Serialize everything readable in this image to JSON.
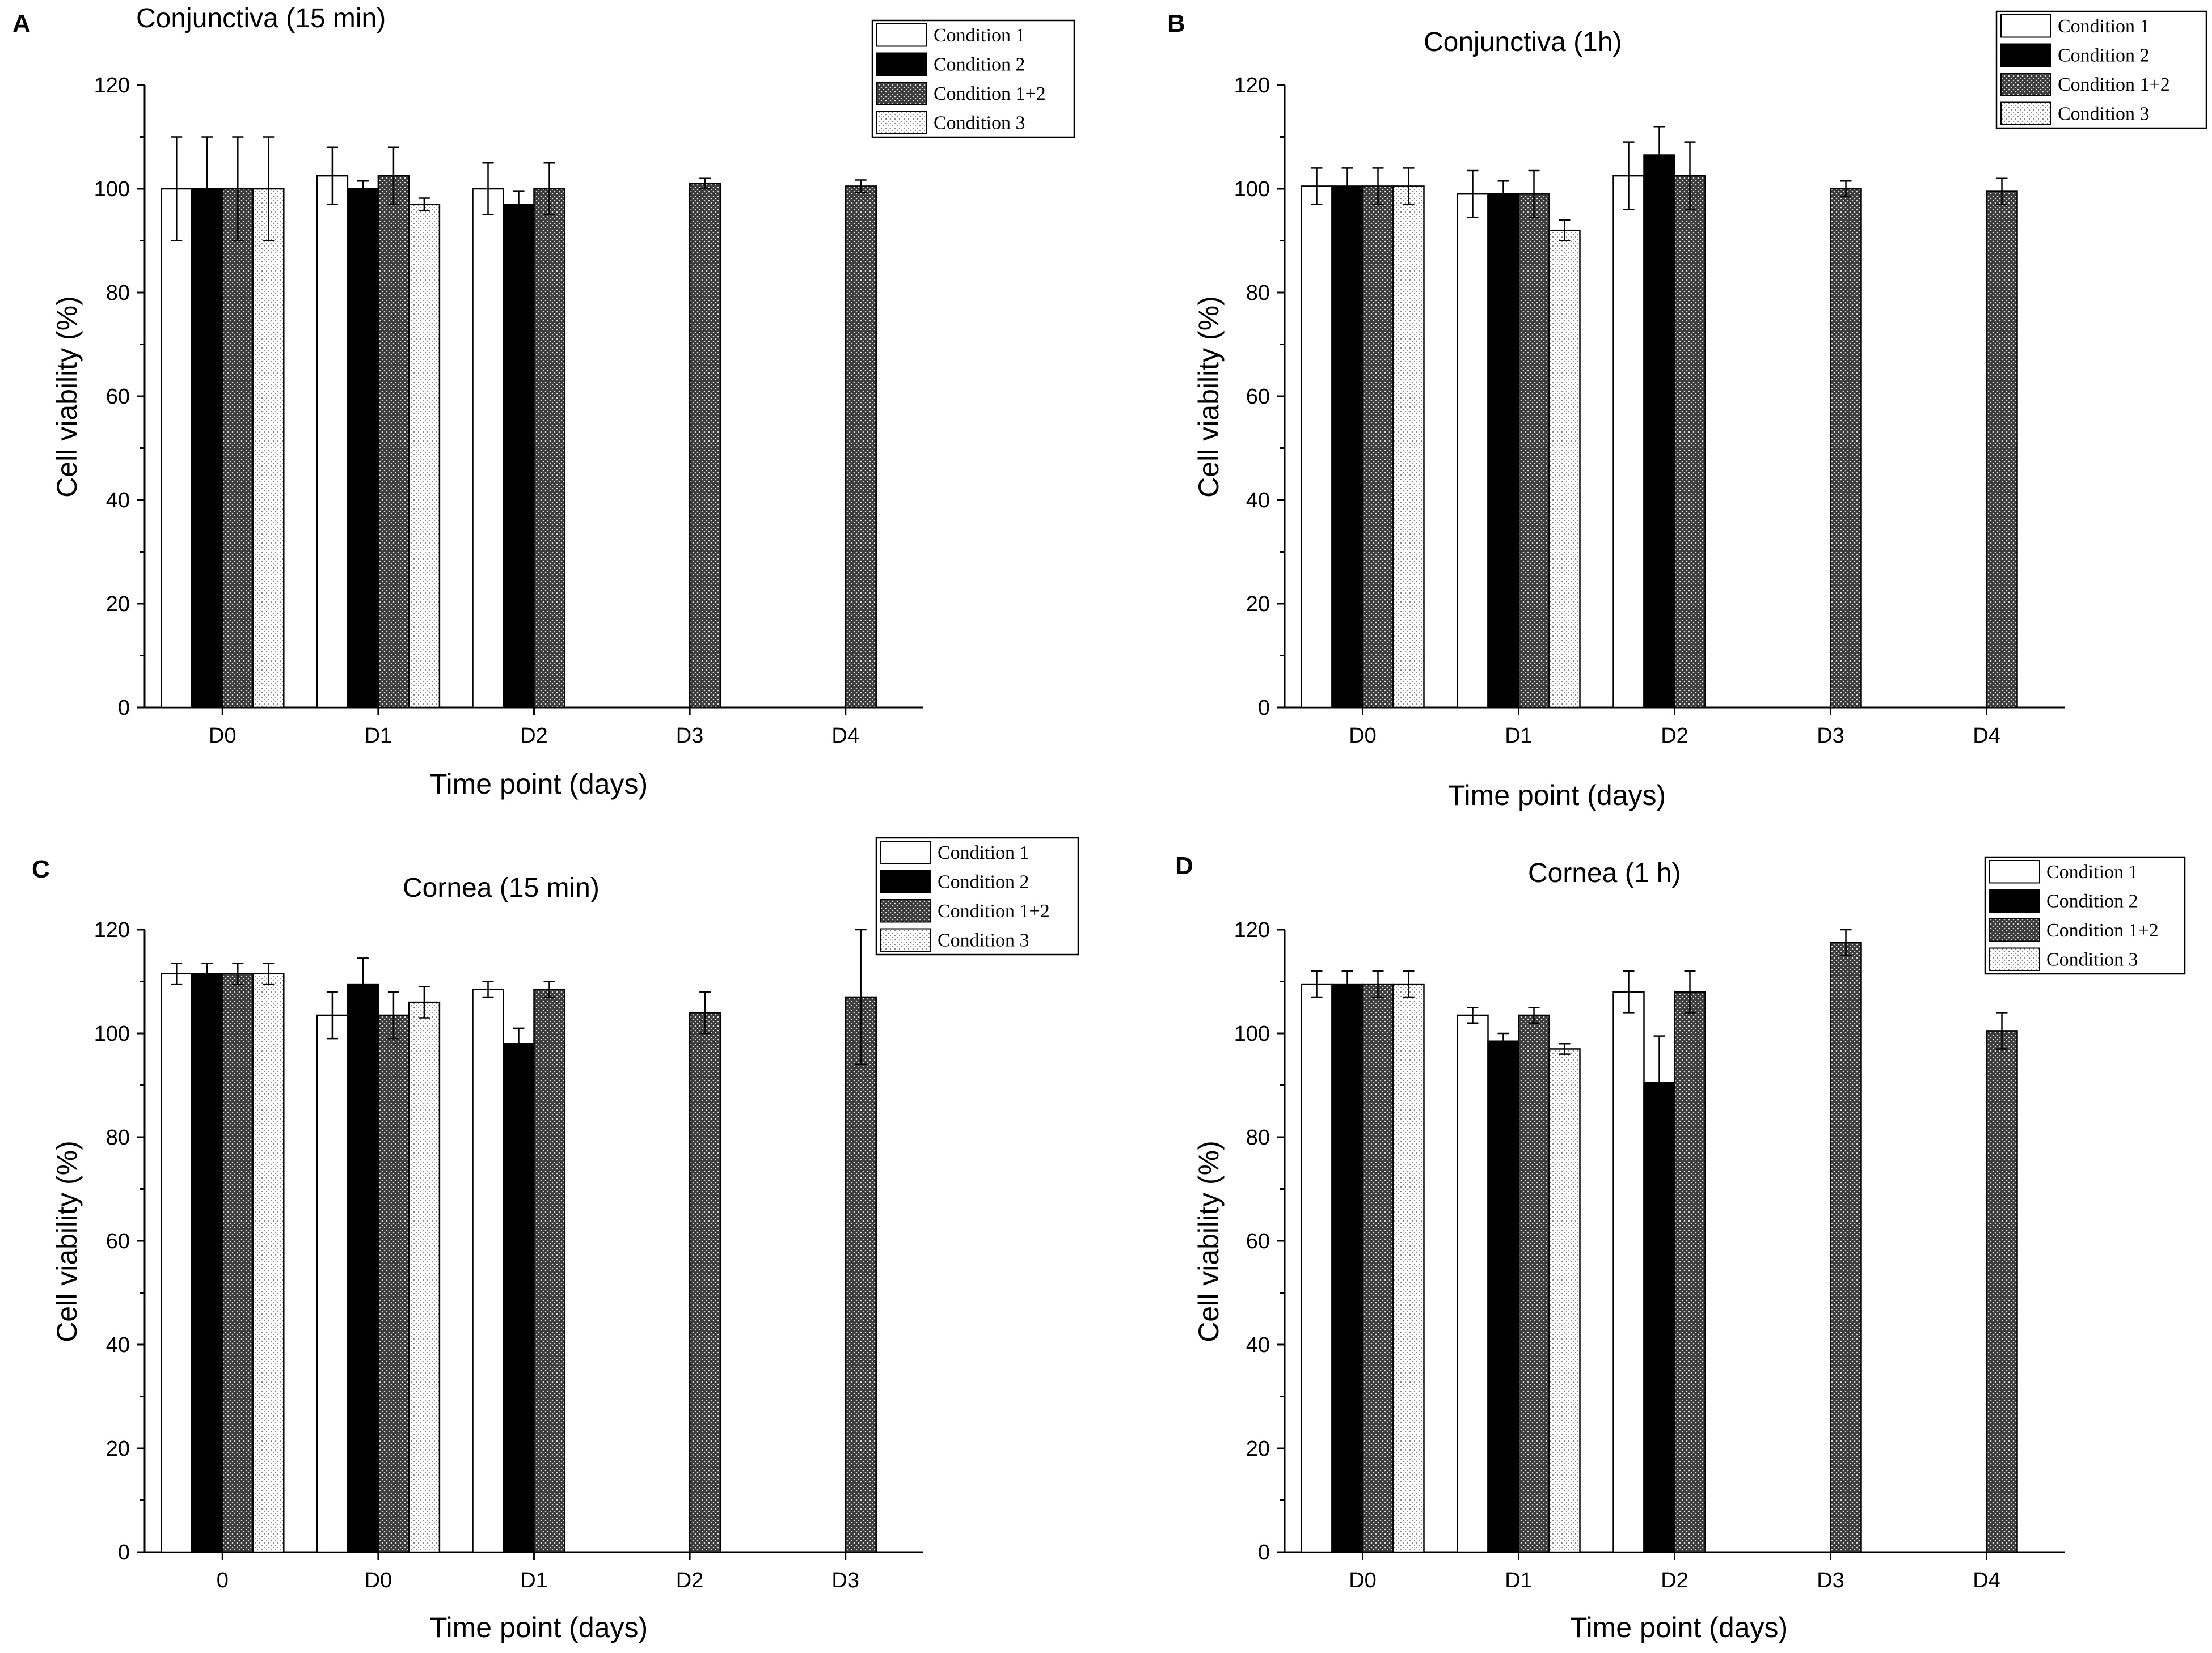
{
  "palette": {
    "c1": "#ffffff",
    "c2": "#000000",
    "c12": "#4a4a4a",
    "c3": "#f3f3f3"
  },
  "chart_data": [
    {
      "type": "bar",
      "letter": "A",
      "title": "Conjunctiva (15 min)",
      "xlabel": "Time point (days)",
      "ylabel": "Cell viability (%)",
      "ylim": [
        0,
        120
      ],
      "yticks": [
        "0",
        "20",
        "40",
        "60",
        "80",
        "100",
        "120"
      ],
      "categories": [
        "D0",
        "D1",
        "D2",
        "D3",
        "D4"
      ],
      "series": [
        {
          "name": "Condition 1",
          "values": [
            100,
            102.5,
            100,
            null,
            null
          ],
          "errors": [
            10,
            5.5,
            5,
            null,
            null
          ]
        },
        {
          "name": "Condition 2",
          "values": [
            100,
            100,
            97,
            null,
            null
          ],
          "errors": [
            10,
            1.5,
            2.5,
            null,
            null
          ]
        },
        {
          "name": "Condition 1+2",
          "values": [
            100,
            102.5,
            100,
            101,
            100.5
          ],
          "errors": [
            10,
            5.5,
            5,
            1,
            1.2
          ]
        },
        {
          "name": "Condition 3",
          "values": [
            100,
            97,
            null,
            null,
            null
          ],
          "errors": [
            10,
            1.2,
            null,
            null,
            null
          ]
        }
      ]
    },
    {
      "type": "bar",
      "letter": "B",
      "title": "Conjunctiva (1h)",
      "xlabel": "Time point (days)",
      "ylabel": "Cell viability (%)",
      "ylim": [
        0,
        120
      ],
      "yticks": [
        "0",
        "20",
        "40",
        "60",
        "80",
        "100",
        "120"
      ],
      "categories": [
        "D0",
        "D1",
        "D2",
        "D3",
        "D4"
      ],
      "series": [
        {
          "name": "Condition 1",
          "values": [
            100.5,
            99,
            102.5,
            null,
            null
          ],
          "errors": [
            3.5,
            4.5,
            6.5,
            null,
            null
          ]
        },
        {
          "name": "Condition 2",
          "values": [
            100.5,
            99,
            106.5,
            null,
            null
          ],
          "errors": [
            3.5,
            2.5,
            5.5,
            null,
            null
          ]
        },
        {
          "name": "Condition 1+2",
          "values": [
            100.5,
            99,
            102.5,
            100,
            99.5
          ],
          "errors": [
            3.5,
            4.5,
            6.5,
            1.5,
            2.5
          ]
        },
        {
          "name": "Condition 3",
          "values": [
            100.5,
            92,
            null,
            null,
            null
          ],
          "errors": [
            3.5,
            2,
            null,
            null,
            null
          ]
        }
      ]
    },
    {
      "type": "bar",
      "letter": "C",
      "title": "Cornea (15 min)",
      "xlabel": "Time point (days)",
      "ylabel": "Cell viability (%)",
      "ylim": [
        0,
        120
      ],
      "yticks": [
        "0",
        "20",
        "40",
        "60",
        "80",
        "100",
        "120"
      ],
      "categories": [
        "0",
        "D0",
        "D1",
        "D2",
        "D3"
      ],
      "series": [
        {
          "name": "Condition 1",
          "values": [
            111.5,
            103.5,
            108.5,
            null,
            null
          ],
          "errors": [
            2,
            4.5,
            1.5,
            null,
            null
          ]
        },
        {
          "name": "Condition 2",
          "values": [
            111.5,
            109.5,
            98,
            null,
            null
          ],
          "errors": [
            2,
            5,
            3,
            null,
            null
          ]
        },
        {
          "name": "Condition 1+2",
          "values": [
            111.5,
            103.5,
            108.5,
            104,
            107
          ],
          "errors": [
            2,
            4.5,
            1.5,
            4,
            13
          ]
        },
        {
          "name": "Condition 3",
          "values": [
            111.5,
            106,
            null,
            null,
            null
          ],
          "errors": [
            2,
            3,
            null,
            null,
            null
          ]
        }
      ]
    },
    {
      "type": "bar",
      "letter": "D",
      "title": "Cornea (1 h)",
      "xlabel": "Time point (days)",
      "ylabel": "Cell viability (%)",
      "ylim": [
        0,
        120
      ],
      "yticks": [
        "0",
        "20",
        "40",
        "60",
        "80",
        "100",
        "120"
      ],
      "categories": [
        "D0",
        "D1",
        "D2",
        "D3",
        "D4"
      ],
      "series": [
        {
          "name": "Condition 1",
          "values": [
            109.5,
            103.5,
            108,
            null,
            null
          ],
          "errors": [
            2.5,
            1.5,
            4,
            null,
            null
          ]
        },
        {
          "name": "Condition 2",
          "values": [
            109.5,
            98.5,
            90.5,
            null,
            null
          ],
          "errors": [
            2.5,
            1.5,
            9,
            null,
            null
          ]
        },
        {
          "name": "Condition 1+2",
          "values": [
            109.5,
            103.5,
            108,
            117.5,
            100.5
          ],
          "errors": [
            2.5,
            1.5,
            4,
            2.5,
            3.5
          ]
        },
        {
          "name": "Condition 3",
          "values": [
            109.5,
            97,
            null,
            null,
            null
          ],
          "errors": [
            2.5,
            1,
            null,
            null,
            null
          ]
        }
      ]
    }
  ]
}
